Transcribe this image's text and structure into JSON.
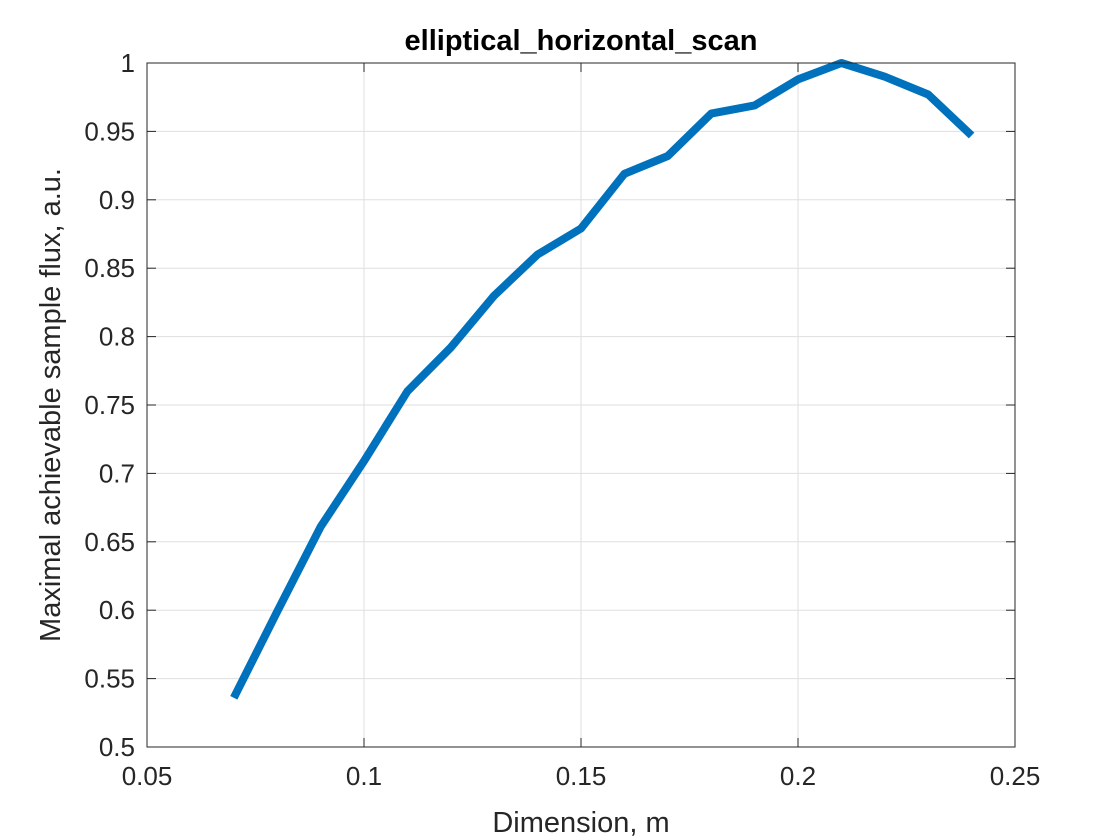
{
  "chart_data": {
    "type": "line",
    "title": "elliptical_horizontal_scan",
    "xlabel": "Dimension, m",
    "ylabel": "Maximal achievable sample flux, a.u.",
    "xlim": [
      0.05,
      0.25
    ],
    "ylim": [
      0.5,
      1
    ],
    "xticks": [
      0.05,
      0.1,
      0.15,
      0.2,
      0.25
    ],
    "xtick_labels": [
      "0.05",
      "0.1",
      "0.15",
      "0.2",
      "0.25"
    ],
    "yticks": [
      0.5,
      0.55,
      0.6,
      0.65,
      0.7,
      0.75,
      0.8,
      0.85,
      0.9,
      0.95,
      1
    ],
    "ytick_labels": [
      "0.5",
      "0.55",
      "0.6",
      "0.65",
      "0.7",
      "0.75",
      "0.8",
      "0.85",
      "0.9",
      "0.95",
      "1"
    ],
    "grid": true,
    "legend": "none",
    "series": [
      {
        "color": "#0072BD",
        "x": [
          0.07,
          0.08,
          0.09,
          0.1,
          0.11,
          0.12,
          0.13,
          0.14,
          0.15,
          0.16,
          0.17,
          0.18,
          0.19,
          0.2,
          0.21,
          0.22,
          0.23,
          0.24
        ],
        "y": [
          0.536,
          0.599,
          0.661,
          0.709,
          0.76,
          0.792,
          0.83,
          0.86,
          0.879,
          0.919,
          0.932,
          0.963,
          0.969,
          0.988,
          1.0,
          0.99,
          0.977,
          0.947
        ]
      }
    ]
  }
}
